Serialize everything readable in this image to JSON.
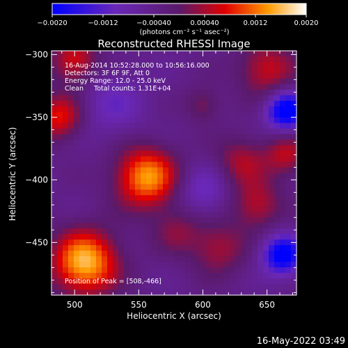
{
  "chart_data": {
    "type": "heatmap",
    "title": "Reconstructed RHESSI Image",
    "xlabel": "Heliocentric X (arcsec)",
    "ylabel": "Heliocentric Y (arcsec)",
    "xlim": [
      482,
      673
    ],
    "ylim": [
      -492,
      -297
    ],
    "x_ticks": [
      500,
      550,
      600,
      650
    ],
    "y_ticks": [
      -300,
      -350,
      -400,
      -450
    ],
    "colorbar": {
      "range": [
        -0.002,
        0.002
      ],
      "tick_labels": [
        "-0.0020",
        "-0.0012",
        "-0.00040",
        "0.00040",
        "0.0012",
        "0.0020"
      ],
      "unit": "(photons cm⁻² s⁻¹ asec⁻²)"
    },
    "annotations": [
      "16-Aug-2014 10:52:28.000 to 10:56:16.000",
      "Detectors: 3F 6F 9F, Att 0",
      "Energy Range: 12.0 - 25.0 keV",
      "Clean     Total counts: 1.31E+04"
    ],
    "peak_label": "Position of Peak = [508,-466]",
    "footer": "16-May-2022 03:49",
    "sources": [
      {
        "x": 508,
        "y": -466,
        "peak": 0.002,
        "sigma": 18
      },
      {
        "x": 556,
        "y": -398,
        "peak": 0.0018,
        "sigma": 17
      },
      {
        "x": 488,
        "y": -350,
        "peak": 0.0012,
        "sigma": 13
      },
      {
        "x": 500,
        "y": -305,
        "peak": 0.0011,
        "sigma": 13
      },
      {
        "x": 650,
        "y": -312,
        "peak": 0.001,
        "sigma": 16
      },
      {
        "x": 630,
        "y": -385,
        "peak": 0.0008,
        "sigma": 14
      },
      {
        "x": 642,
        "y": -420,
        "peak": 0.0009,
        "sigma": 14
      },
      {
        "x": 612,
        "y": -455,
        "peak": 0.0008,
        "sigma": 15
      },
      {
        "x": 580,
        "y": -440,
        "peak": 0.0006,
        "sigma": 14
      },
      {
        "x": 600,
        "y": -340,
        "peak": 0.0006,
        "sigma": 10
      },
      {
        "x": 665,
        "y": -380,
        "peak": 0.0009,
        "sigma": 12
      }
    ],
    "negative_regions": [
      {
        "x": 665,
        "y": -345,
        "peak": -0.0019,
        "sigma": 11
      },
      {
        "x": 662,
        "y": -460,
        "peak": -0.0018,
        "sigma": 11
      },
      {
        "x": 530,
        "y": -340,
        "peak": -0.0006,
        "sigma": 18
      },
      {
        "x": 600,
        "y": -410,
        "peak": -0.0007,
        "sigma": 14
      }
    ]
  }
}
